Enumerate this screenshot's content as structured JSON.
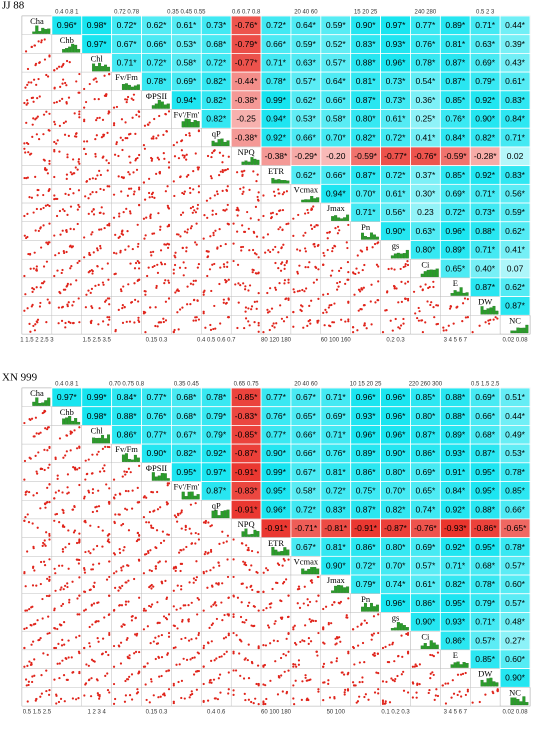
{
  "chart_data": [
    {
      "type": "correlation-matrix",
      "title": "JJ 88",
      "variables": [
        "Cha",
        "Chb",
        "Chl",
        "Fv/Fm",
        "ΦPSII",
        "Fv'/Fm'",
        "qP",
        "NPQ",
        "ETR",
        "Vcmax",
        "Jmax",
        "Pn",
        "gs",
        "Ci",
        "E",
        "DW",
        "NC"
      ],
      "top_ticks": [
        null,
        "0.4 0.8 1",
        null,
        "0.72 0.78",
        null,
        "0.35 0.45 0.55",
        null,
        "0.6 0.7 0.8",
        null,
        "20 40 60",
        null,
        "15 20 25",
        null,
        "240 280",
        null,
        "0.5 2 3",
        null
      ],
      "bottom_ticks": [
        "1 1.5 2 2.5 3",
        null,
        "1.5 2.5 3.5",
        null,
        "0.15 0.3",
        null,
        "0.4 0.5 0.6 0.7",
        null,
        "80 120 180",
        null,
        "60 100 160",
        null,
        "0.2 0.3",
        null,
        "3 4 5 6 7",
        null,
        "0.02 0.08"
      ],
      "matrix": [
        {
          "values": [
            0.96,
            0.98,
            0.72,
            0.62,
            0.61,
            0.73,
            -0.76,
            0.72,
            0.64,
            0.59,
            0.9,
            0.97,
            0.77,
            0.89,
            0.71,
            0.44
          ],
          "value_labels": [
            "0.96*",
            "0.98*",
            "0.72*",
            "0.62*",
            "0.61*",
            "0.73*",
            "-0.76*",
            "0.72*",
            "0.64*",
            "0.59*",
            "0.90*",
            "0.97*",
            "0.77*",
            "0.89*",
            "0.71*",
            "0.44*"
          ]
        },
        {
          "values": [
            0.97,
            0.67,
            0.66,
            0.53,
            0.68,
            -0.79,
            0.66,
            0.59,
            0.52,
            0.83,
            0.93,
            0.76,
            0.81,
            0.63,
            0.39
          ],
          "value_labels": [
            "0.97*",
            "0.67*",
            "0.66*",
            "0.53*",
            "0.68*",
            "-0.79*",
            "0.66*",
            "0.59*",
            "0.52*",
            "0.83*",
            "0.93*",
            "0.76*",
            "0.81*",
            "0.63*",
            "0.39*"
          ]
        },
        {
          "values": [
            0.71,
            0.72,
            0.58,
            0.72,
            -0.77,
            0.71,
            0.63,
            0.57,
            0.88,
            0.96,
            0.78,
            0.87,
            0.69,
            0.43
          ],
          "value_labels": [
            "0.71*",
            "0.72*",
            "0.58*",
            "0.72*",
            "-0.77*",
            "0.71*",
            "0.63*",
            "0.57*",
            "0.88*",
            "0.96*",
            "0.78*",
            "0.87*",
            "0.69*",
            "0.43*"
          ]
        },
        {
          "values": [
            0.78,
            0.69,
            0.82,
            -0.44,
            0.78,
            0.57,
            0.64,
            0.81,
            0.73,
            0.54,
            0.87,
            0.79,
            0.61
          ],
          "value_labels": [
            "0.78*",
            "0.69*",
            "0.82*",
            "-0.44*",
            "0.78*",
            "0.57*",
            "0.64*",
            "0.81*",
            "0.73*",
            "0.54*",
            "0.87*",
            "0.79*",
            "0.61*"
          ]
        },
        {
          "values": [
            0.94,
            0.82,
            -0.38,
            0.99,
            0.62,
            0.66,
            0.87,
            0.73,
            0.36,
            0.85,
            0.92,
            0.83
          ],
          "value_labels": [
            "0.94*",
            "0.82*",
            "-0.38*",
            "0.99*",
            "0.62*",
            "0.66*",
            "0.87*",
            "0.73*",
            "0.36*",
            "0.85*",
            "0.92*",
            "0.83*"
          ]
        },
        {
          "values": [
            0.82,
            -0.25,
            0.94,
            0.53,
            0.58,
            0.8,
            0.61,
            0.25,
            0.76,
            0.9,
            0.84
          ],
          "value_labels": [
            "0.82*",
            "-0.25",
            "0.94*",
            "0.53*",
            "0.58*",
            "0.80*",
            "0.61*",
            "0.25*",
            "0.76*",
            "0.90*",
            "0.84*"
          ]
        },
        {
          "values": [
            -0.38,
            0.92,
            0.66,
            0.7,
            0.82,
            0.72,
            0.41,
            0.84,
            0.82,
            0.71
          ],
          "value_labels": [
            "-0.38*",
            "0.92*",
            "0.66*",
            "0.70*",
            "0.82*",
            "0.72*",
            "0.41*",
            "0.84*",
            "0.82*",
            "0.71*"
          ]
        },
        {
          "values": [
            -0.38,
            -0.29,
            -0.2,
            -0.59,
            -0.77,
            -0.76,
            -0.59,
            -0.28,
            0.02
          ],
          "value_labels": [
            "-0.38*",
            "-0.29*",
            "-0.20",
            "-0.59*",
            "-0.77*",
            "-0.76*",
            "-0.59*",
            "-0.28*",
            "0.02"
          ]
        },
        {
          "values": [
            0.62,
            0.66,
            0.87,
            0.72,
            0.37,
            0.85,
            0.92,
            0.83
          ],
          "value_labels": [
            "0.62*",
            "0.66*",
            "0.87*",
            "0.72*",
            "0.37*",
            "0.85*",
            "0.92*",
            "0.83*"
          ]
        },
        {
          "values": [
            0.94,
            0.7,
            0.61,
            0.3,
            0.69,
            0.71,
            0.56
          ],
          "value_labels": [
            "0.94*",
            "0.70*",
            "0.61*",
            "0.30*",
            "0.69*",
            "0.71*",
            "0.56*"
          ]
        },
        {
          "values": [
            0.71,
            0.56,
            0.23,
            0.72,
            0.73,
            0.59
          ],
          "value_labels": [
            "0.71*",
            "0.56*",
            "0.23",
            "0.72*",
            "0.73*",
            "0.59*"
          ]
        },
        {
          "values": [
            0.9,
            0.63,
            0.96,
            0.88,
            0.62
          ],
          "value_labels": [
            "0.90*",
            "0.63*",
            "0.96*",
            "0.88*",
            "0.62*"
          ]
        },
        {
          "values": [
            0.8,
            0.89,
            0.71,
            0.41
          ],
          "value_labels": [
            "0.80*",
            "0.89*",
            "0.71*",
            "0.41*"
          ]
        },
        {
          "values": [
            0.65,
            0.4,
            0.07
          ],
          "value_labels": [
            "0.65*",
            "0.40*",
            "0.07"
          ]
        },
        {
          "values": [
            0.87,
            0.62
          ],
          "value_labels": [
            "0.87*",
            "0.62*"
          ]
        },
        {
          "values": [
            0.87
          ],
          "value_labels": [
            "0.87*"
          ]
        }
      ]
    },
    {
      "type": "correlation-matrix",
      "title": "XN 999",
      "variables": [
        "Cha",
        "Chb",
        "Chl",
        "Fv/Fm",
        "ΦPSII",
        "Fv'/Fm'",
        "qP",
        "NPQ",
        "ETR",
        "Vcmax",
        "Jmax",
        "Pn",
        "gs",
        "Ci",
        "E",
        "DW",
        "NC"
      ],
      "top_ticks": [
        null,
        "0.4 0.8 1",
        null,
        "0.70 0.75 0.8",
        null,
        "0.35 0.45",
        null,
        "0.65 0.75",
        null,
        "20 40 60",
        null,
        "10 15 20 25",
        null,
        "220 260 300",
        null,
        "0.5 1.5 2.5",
        null
      ],
      "bottom_ticks": [
        "0.5 1.5 2.5",
        null,
        "1 2 3 4",
        null,
        "0.15 0.3",
        null,
        "0.4 0.6",
        null,
        "60 100 180",
        null,
        "50 100",
        null,
        "0.1 0.2 0.3",
        null,
        "3 4 5 6 7",
        null,
        "0.02 0.08"
      ],
      "matrix": [
        {
          "values": [
            0.97,
            0.99,
            0.84,
            0.77,
            0.68,
            0.78,
            -0.85,
            0.77,
            0.67,
            0.71,
            0.96,
            0.96,
            0.85,
            0.88,
            0.69,
            0.51
          ],
          "value_labels": [
            "0.97*",
            "0.99*",
            "0.84*",
            "0.77*",
            "0.68*",
            "0.78*",
            "-0.85*",
            "0.77*",
            "0.67*",
            "0.71*",
            "0.96*",
            "0.96*",
            "0.85*",
            "0.88*",
            "0.69*",
            "0.51*"
          ]
        },
        {
          "values": [
            0.98,
            0.88,
            0.76,
            0.68,
            0.79,
            -0.83,
            0.76,
            0.65,
            0.69,
            0.93,
            0.96,
            0.8,
            0.88,
            0.66,
            0.44
          ],
          "value_labels": [
            "0.98*",
            "0.88*",
            "0.76*",
            "0.68*",
            "0.79*",
            "-0.83*",
            "0.76*",
            "0.65*",
            "0.69*",
            "0.93*",
            "0.96*",
            "0.80*",
            "0.88*",
            "0.66*",
            "0.44*"
          ]
        },
        {
          "values": [
            0.86,
            0.77,
            0.67,
            0.79,
            -0.85,
            0.77,
            0.66,
            0.71,
            0.96,
            0.96,
            0.87,
            0.89,
            0.68,
            0.49
          ],
          "value_labels": [
            "0.86*",
            "0.77*",
            "0.67*",
            "0.79*",
            "-0.85*",
            "0.77*",
            "0.66*",
            "0.71*",
            "0.96*",
            "0.96*",
            "0.87*",
            "0.89*",
            "0.68*",
            "0.49*"
          ]
        },
        {
          "values": [
            0.9,
            0.82,
            0.92,
            -0.87,
            0.9,
            0.66,
            0.76,
            0.89,
            0.9,
            0.86,
            0.93,
            0.87,
            0.53
          ],
          "value_labels": [
            "0.90*",
            "0.82*",
            "0.92*",
            "-0.87*",
            "0.90*",
            "0.66*",
            "0.76*",
            "0.89*",
            "0.90*",
            "0.86*",
            "0.93*",
            "0.87*",
            "0.53*"
          ]
        },
        {
          "values": [
            0.95,
            0.97,
            -0.91,
            0.99,
            0.67,
            0.81,
            0.86,
            0.8,
            0.69,
            0.91,
            0.95,
            0.78
          ],
          "value_labels": [
            "0.95*",
            "0.97*",
            "-0.91*",
            "0.99*",
            "0.67*",
            "0.81*",
            "0.86*",
            "0.80*",
            "0.69*",
            "0.91*",
            "0.95*",
            "0.78*"
          ]
        },
        {
          "values": [
            0.87,
            -0.83,
            0.95,
            0.58,
            0.72,
            0.75,
            0.7,
            0.65,
            0.84,
            0.95,
            0.85
          ],
          "value_labels": [
            "0.87*",
            "-0.83*",
            "0.95*",
            "0.58*",
            "0.72*",
            "0.75*",
            "0.70*",
            "0.65*",
            "0.84*",
            "0.95*",
            "0.85*"
          ]
        },
        {
          "values": [
            -0.91,
            0.96,
            0.72,
            0.83,
            0.87,
            0.82,
            0.74,
            0.92,
            0.88,
            0.66
          ],
          "value_labels": [
            "-0.91*",
            "0.96*",
            "0.72*",
            "0.83*",
            "0.87*",
            "0.82*",
            "0.74*",
            "0.92*",
            "0.88*",
            "0.66*"
          ]
        },
        {
          "values": [
            -0.91,
            -0.71,
            -0.81,
            -0.91,
            -0.87,
            -0.76,
            -0.93,
            -0.86,
            -0.65
          ],
          "value_labels": [
            "-0.91*",
            "-0.71*",
            "-0.81*",
            "-0.91*",
            "-0.87*",
            "-0.76*",
            "-0.93*",
            "-0.86*",
            "-0.65*"
          ]
        },
        {
          "values": [
            0.67,
            0.81,
            0.86,
            0.8,
            0.69,
            0.92,
            0.95,
            0.78
          ],
          "value_labels": [
            "0.67*",
            "0.81*",
            "0.86*",
            "0.80*",
            "0.69*",
            "0.92*",
            "0.95*",
            "0.78*"
          ]
        },
        {
          "values": [
            0.9,
            0.72,
            0.7,
            0.57,
            0.71,
            0.68,
            0.57
          ],
          "value_labels": [
            "0.90*",
            "0.72*",
            "0.70*",
            "0.57*",
            "0.71*",
            "0.68*",
            "0.57*"
          ]
        },
        {
          "values": [
            0.79,
            0.74,
            0.61,
            0.82,
            0.78,
            0.6
          ],
          "value_labels": [
            "0.79*",
            "0.74*",
            "0.61*",
            "0.82*",
            "0.78*",
            "0.60*"
          ]
        },
        {
          "values": [
            0.96,
            0.86,
            0.95,
            0.79,
            0.57
          ],
          "value_labels": [
            "0.96*",
            "0.86*",
            "0.95*",
            "0.79*",
            "0.57*"
          ]
        },
        {
          "values": [
            0.9,
            0.93,
            0.71,
            0.48
          ],
          "value_labels": [
            "0.90*",
            "0.93*",
            "0.71*",
            "0.48*"
          ]
        },
        {
          "values": [
            0.86,
            0.57,
            0.27
          ],
          "value_labels": [
            "0.86*",
            "0.57*",
            "0.27*"
          ]
        },
        {
          "values": [
            0.85,
            0.6
          ],
          "value_labels": [
            "0.85*",
            "0.60*"
          ]
        },
        {
          "values": [
            0.9
          ],
          "value_labels": [
            "0.90*"
          ]
        }
      ]
    }
  ]
}
